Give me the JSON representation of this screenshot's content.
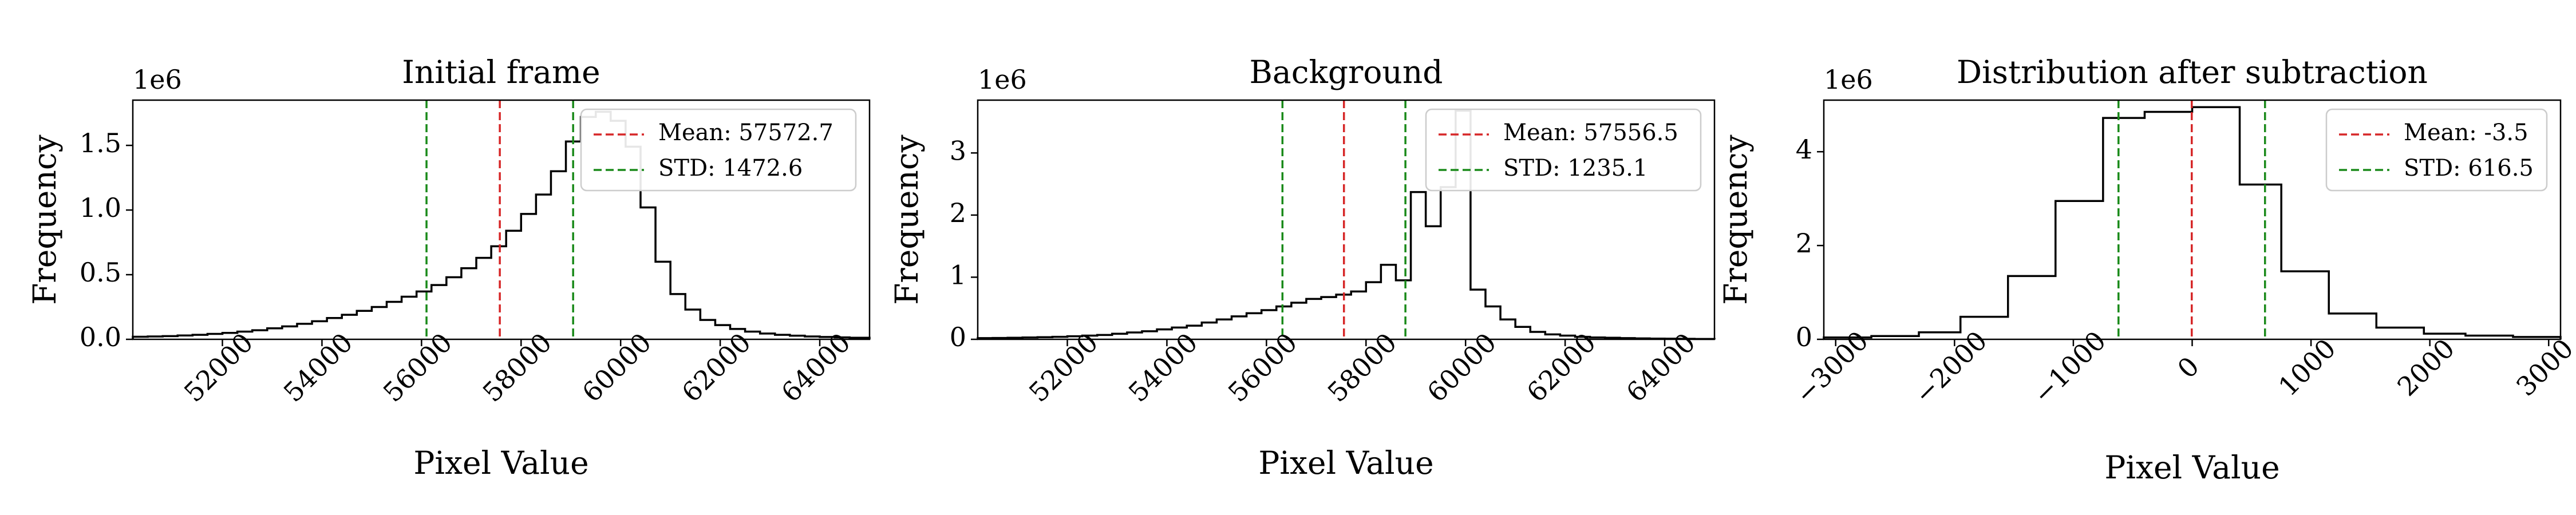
{
  "chart_data": [
    {
      "type": "histogram",
      "title": "Initial frame",
      "xlabel": "Pixel Value",
      "ylabel": "Frequency",
      "y_multiplier": "1e6",
      "xlim": [
        50200,
        65000
      ],
      "ylim": [
        0,
        1.85
      ],
      "xticks": [
        "52000",
        "54000",
        "56000",
        "58000",
        "60000",
        "62000",
        "64000"
      ],
      "xtick_values": [
        52000,
        54000,
        56000,
        58000,
        60000,
        62000,
        64000
      ],
      "yticks": [
        "0.0",
        "0.5",
        "1.0",
        "1.5"
      ],
      "ytick_values": [
        0,
        0.5,
        1.0,
        1.5
      ],
      "bin_edges": [
        50200,
        50500,
        50800,
        51100,
        51400,
        51700,
        52000,
        52300,
        52600,
        52900,
        53200,
        53500,
        53800,
        54100,
        54400,
        54700,
        55000,
        55300,
        55600,
        55900,
        56200,
        56500,
        56800,
        57100,
        57400,
        57700,
        58000,
        58300,
        58600,
        58900,
        59200,
        59500,
        59800,
        60100,
        60400,
        60700,
        61000,
        61300,
        61600,
        61900,
        62200,
        62500,
        62800,
        63100,
        63400,
        63700,
        64000,
        64300,
        64600,
        65000
      ],
      "counts": [
        0.02,
        0.022,
        0.025,
        0.03,
        0.035,
        0.042,
        0.05,
        0.06,
        0.07,
        0.085,
        0.1,
        0.12,
        0.14,
        0.165,
        0.19,
        0.22,
        0.25,
        0.29,
        0.33,
        0.37,
        0.42,
        0.48,
        0.55,
        0.63,
        0.72,
        0.84,
        0.97,
        1.12,
        1.3,
        1.53,
        1.72,
        1.76,
        1.69,
        1.49,
        1.02,
        0.6,
        0.35,
        0.23,
        0.15,
        0.11,
        0.08,
        0.06,
        0.045,
        0.035,
        0.028,
        0.022,
        0.018,
        0.015,
        0.012
      ],
      "mean": 57572.7,
      "std": 1472.6,
      "legend": [
        {
          "label": "Mean: 57572.7",
          "color": "#d62728"
        },
        {
          "label": "STD: 1472.6",
          "color": "#1a8a1a"
        }
      ],
      "legend_position": "top-right"
    },
    {
      "type": "histogram",
      "title": "Background",
      "xlabel": "Pixel Value",
      "ylabel": "Frequency",
      "y_multiplier": "1e6",
      "xlim": [
        50200,
        65000
      ],
      "ylim": [
        0,
        3.85
      ],
      "xticks": [
        "52000",
        "54000",
        "56000",
        "58000",
        "60000",
        "62000",
        "64000"
      ],
      "xtick_values": [
        52000,
        54000,
        56000,
        58000,
        60000,
        62000,
        64000
      ],
      "yticks": [
        "0",
        "1",
        "2",
        "3"
      ],
      "ytick_values": [
        0,
        1,
        2,
        3
      ],
      "bin_edges": [
        50200,
        50500,
        50800,
        51100,
        51400,
        51700,
        52000,
        52300,
        52600,
        52900,
        53200,
        53500,
        53800,
        54100,
        54400,
        54700,
        55000,
        55300,
        55600,
        55900,
        56200,
        56500,
        56800,
        57100,
        57400,
        57700,
        58000,
        58300,
        58600,
        58900,
        59200,
        59500,
        59800,
        60100,
        60400,
        60700,
        61000,
        61300,
        61600,
        61900,
        62200,
        62500,
        62800,
        63100,
        63400,
        63700,
        64000,
        64300,
        64600,
        65000
      ],
      "counts": [
        0.02,
        0.022,
        0.025,
        0.03,
        0.035,
        0.04,
        0.05,
        0.06,
        0.07,
        0.09,
        0.11,
        0.13,
        0.16,
        0.19,
        0.22,
        0.27,
        0.32,
        0.37,
        0.42,
        0.47,
        0.53,
        0.59,
        0.65,
        0.68,
        0.72,
        0.77,
        0.92,
        1.2,
        0.95,
        2.37,
        1.82,
        2.45,
        3.68,
        0.8,
        0.53,
        0.32,
        0.2,
        0.12,
        0.08,
        0.06,
        0.04,
        0.03,
        0.025,
        0.02,
        0.015,
        0.012,
        0.01,
        0.008,
        0.006
      ],
      "mean": 57556.5,
      "std": 1235.1,
      "legend": [
        {
          "label": "Mean: 57556.5",
          "color": "#d62728"
        },
        {
          "label": "STD: 1235.1",
          "color": "#1a8a1a"
        }
      ],
      "legend_position": "top-right"
    },
    {
      "type": "histogram",
      "title": "Distribution after subtraction",
      "xlabel": "Pixel Value",
      "ylabel": "Frequency",
      "y_multiplier": "1e6",
      "xlim": [
        -3100,
        3100
      ],
      "ylim": [
        0,
        5.1
      ],
      "xticks": [
        "−3000",
        "−2000",
        "−1000",
        "0",
        "1000",
        "2000",
        "3000"
      ],
      "xtick_values": [
        -3000,
        -2000,
        -1000,
        0,
        1000,
        2000,
        3000
      ],
      "yticks": [
        "0",
        "2",
        "4"
      ],
      "ytick_values": [
        0,
        2,
        4
      ],
      "bin_edges": [
        -3100,
        -2700,
        -2300,
        -1950,
        -1550,
        -1150,
        -750,
        -400,
        0,
        400,
        750,
        1150,
        1550,
        1950,
        2300,
        2700,
        3100
      ],
      "counts": [
        0.04,
        0.07,
        0.15,
        0.48,
        1.35,
        2.95,
        4.72,
        4.85,
        4.95,
        3.3,
        1.45,
        0.55,
        0.25,
        0.12,
        0.08,
        0.05
      ],
      "mean": -3.5,
      "std": 616.5,
      "legend": [
        {
          "label": "Mean: -3.5",
          "color": "#d62728"
        },
        {
          "label": "STD: 616.5",
          "color": "#1a8a1a"
        }
      ],
      "legend_position": "top-right"
    }
  ]
}
